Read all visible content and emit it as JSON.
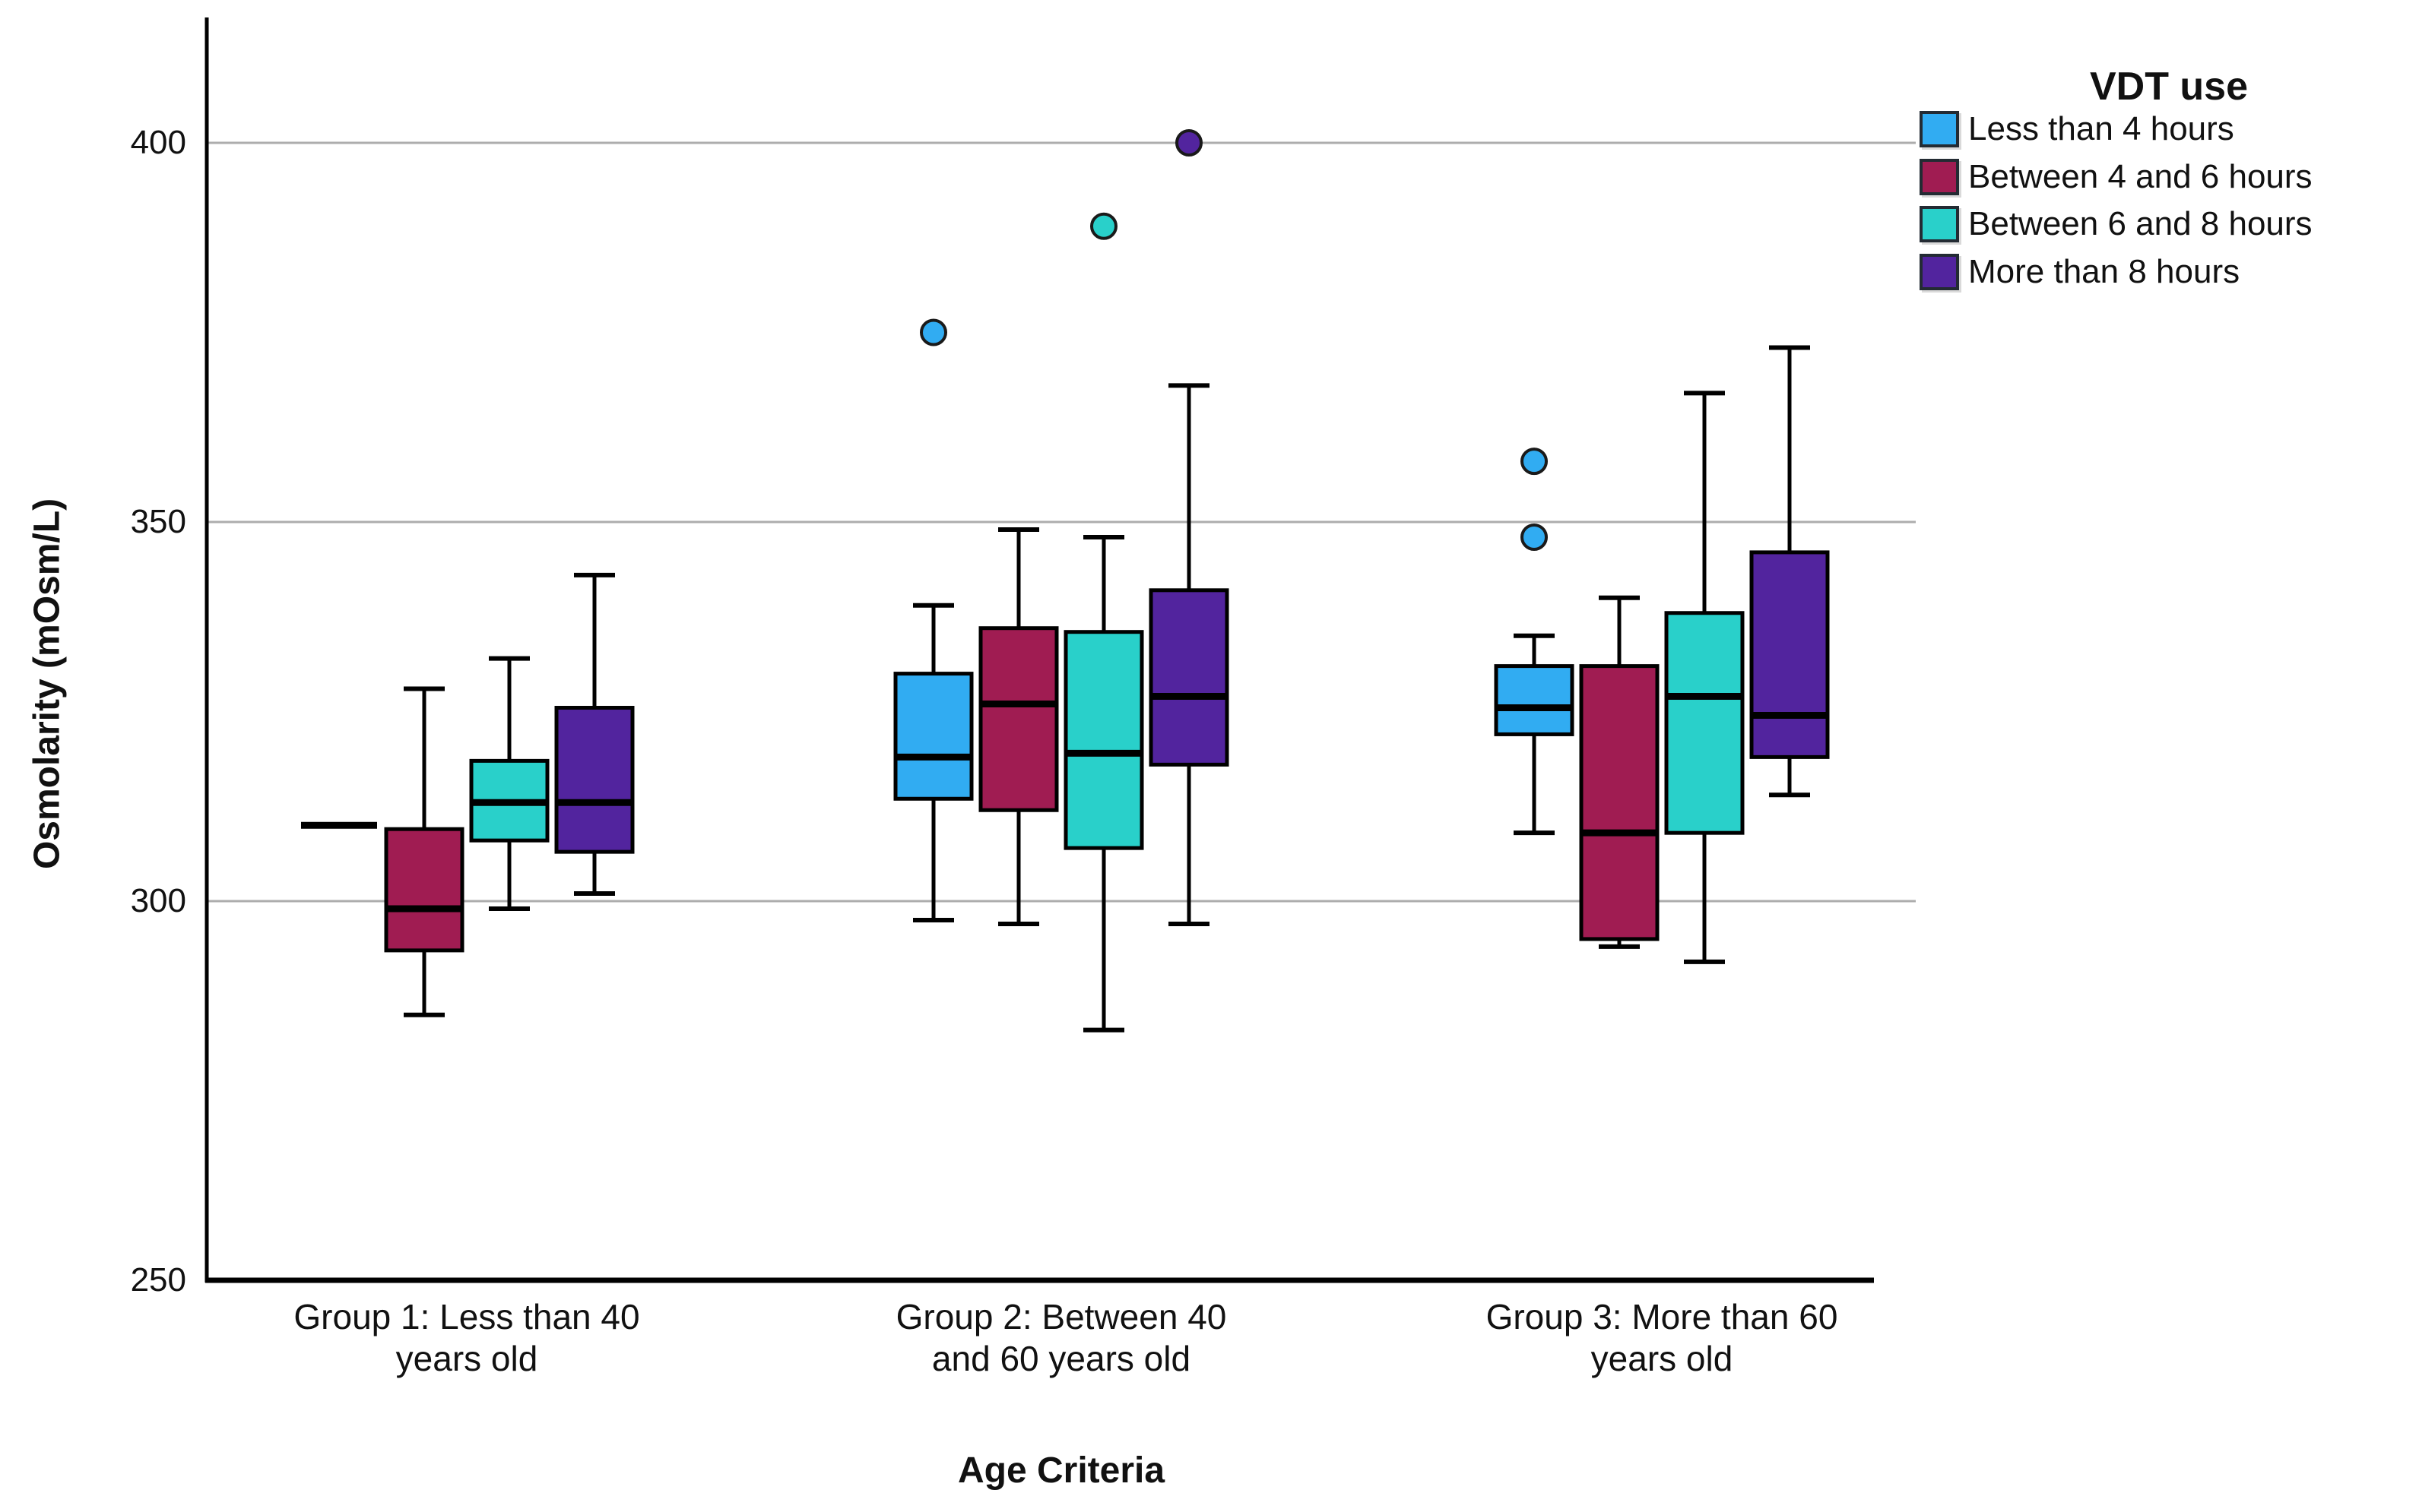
{
  "page": {
    "background": "#ffffff",
    "text_color": "#111111"
  },
  "chart_data": {
    "type": "boxplot",
    "ylabel": "Osmolarity (mOsm/L)",
    "xlabel": "Age Criteria",
    "ylim": [
      250,
      416
    ],
    "yticks": [
      400,
      350,
      300,
      250
    ],
    "ytick_labels": [
      "400",
      "350",
      "300",
      "250"
    ],
    "grid": true,
    "grid_color": "#ADADAD",
    "axis_color": "#000000",
    "legend_position": "top-right",
    "legend_title": "VDT use",
    "categories": [
      "Group 1: Less than 40\nyears old",
      "Group 2: Between 40\nand 60 years old",
      "Group 3: More than 60\nyears old"
    ],
    "series": [
      {
        "name": "Less than 4 hours",
        "color": "#31ACF2"
      },
      {
        "name": "Between 4 and 6 hours",
        "color": "#A01C52"
      },
      {
        "name": "Between 6 and 8 hours",
        "color": "#29D0CA"
      },
      {
        "name": "More than 8 hours",
        "color": "#52249E"
      }
    ],
    "groups": [
      {
        "category": "Group 1: Less than 40 years old",
        "boxes": [
          {
            "series": "Less than 4 hours",
            "min": 310,
            "q1": 310,
            "median": 310,
            "q3": 310,
            "max": 310,
            "outliers": []
          },
          {
            "series": "Between 4 and 6 hours",
            "min": 285,
            "q1": 293.5,
            "median": 299,
            "q3": 309.5,
            "max": 328,
            "outliers": []
          },
          {
            "series": "Between 6 and 8 hours",
            "min": 299,
            "q1": 308,
            "median": 313,
            "q3": 318.5,
            "max": 332,
            "outliers": []
          },
          {
            "series": "More than 8 hours",
            "min": 301,
            "q1": 306.5,
            "median": 313,
            "q3": 325.5,
            "max": 343,
            "outliers": []
          }
        ]
      },
      {
        "category": "Group 2: Between 40 and 60 years old",
        "boxes": [
          {
            "series": "Less than 4 hours",
            "min": 297.5,
            "q1": 313.5,
            "median": 319,
            "q3": 330,
            "max": 339,
            "outliers": [
              375
            ]
          },
          {
            "series": "Between 4 and 6 hours",
            "min": 297,
            "q1": 312,
            "median": 326,
            "q3": 336,
            "max": 349,
            "outliers": []
          },
          {
            "series": "Between 6 and 8 hours",
            "min": 283,
            "q1": 307,
            "median": 319.5,
            "q3": 335.5,
            "max": 348,
            "outliers": [
              389
            ]
          },
          {
            "series": "More than 8 hours",
            "min": 297,
            "q1": 318,
            "median": 327,
            "q3": 341,
            "max": 368,
            "outliers": [
              400
            ]
          }
        ]
      },
      {
        "category": "Group 3: More than 60 years old",
        "boxes": [
          {
            "series": "Less than 4 hours",
            "min": 309,
            "q1": 322,
            "median": 325.5,
            "q3": 331,
            "max": 335,
            "outliers": [
              348,
              358
            ]
          },
          {
            "series": "Between 4 and 6 hours",
            "min": 294,
            "q1": 295,
            "median": 309,
            "q3": 331,
            "max": 340,
            "outliers": []
          },
          {
            "series": "Between 6 and 8 hours",
            "min": 292,
            "q1": 309,
            "median": 327,
            "q3": 338,
            "max": 367,
            "outliers": []
          },
          {
            "series": "More than 8 hours",
            "min": 314,
            "q1": 319,
            "median": 324.5,
            "q3": 346,
            "max": 373,
            "outliers": []
          }
        ]
      }
    ]
  }
}
